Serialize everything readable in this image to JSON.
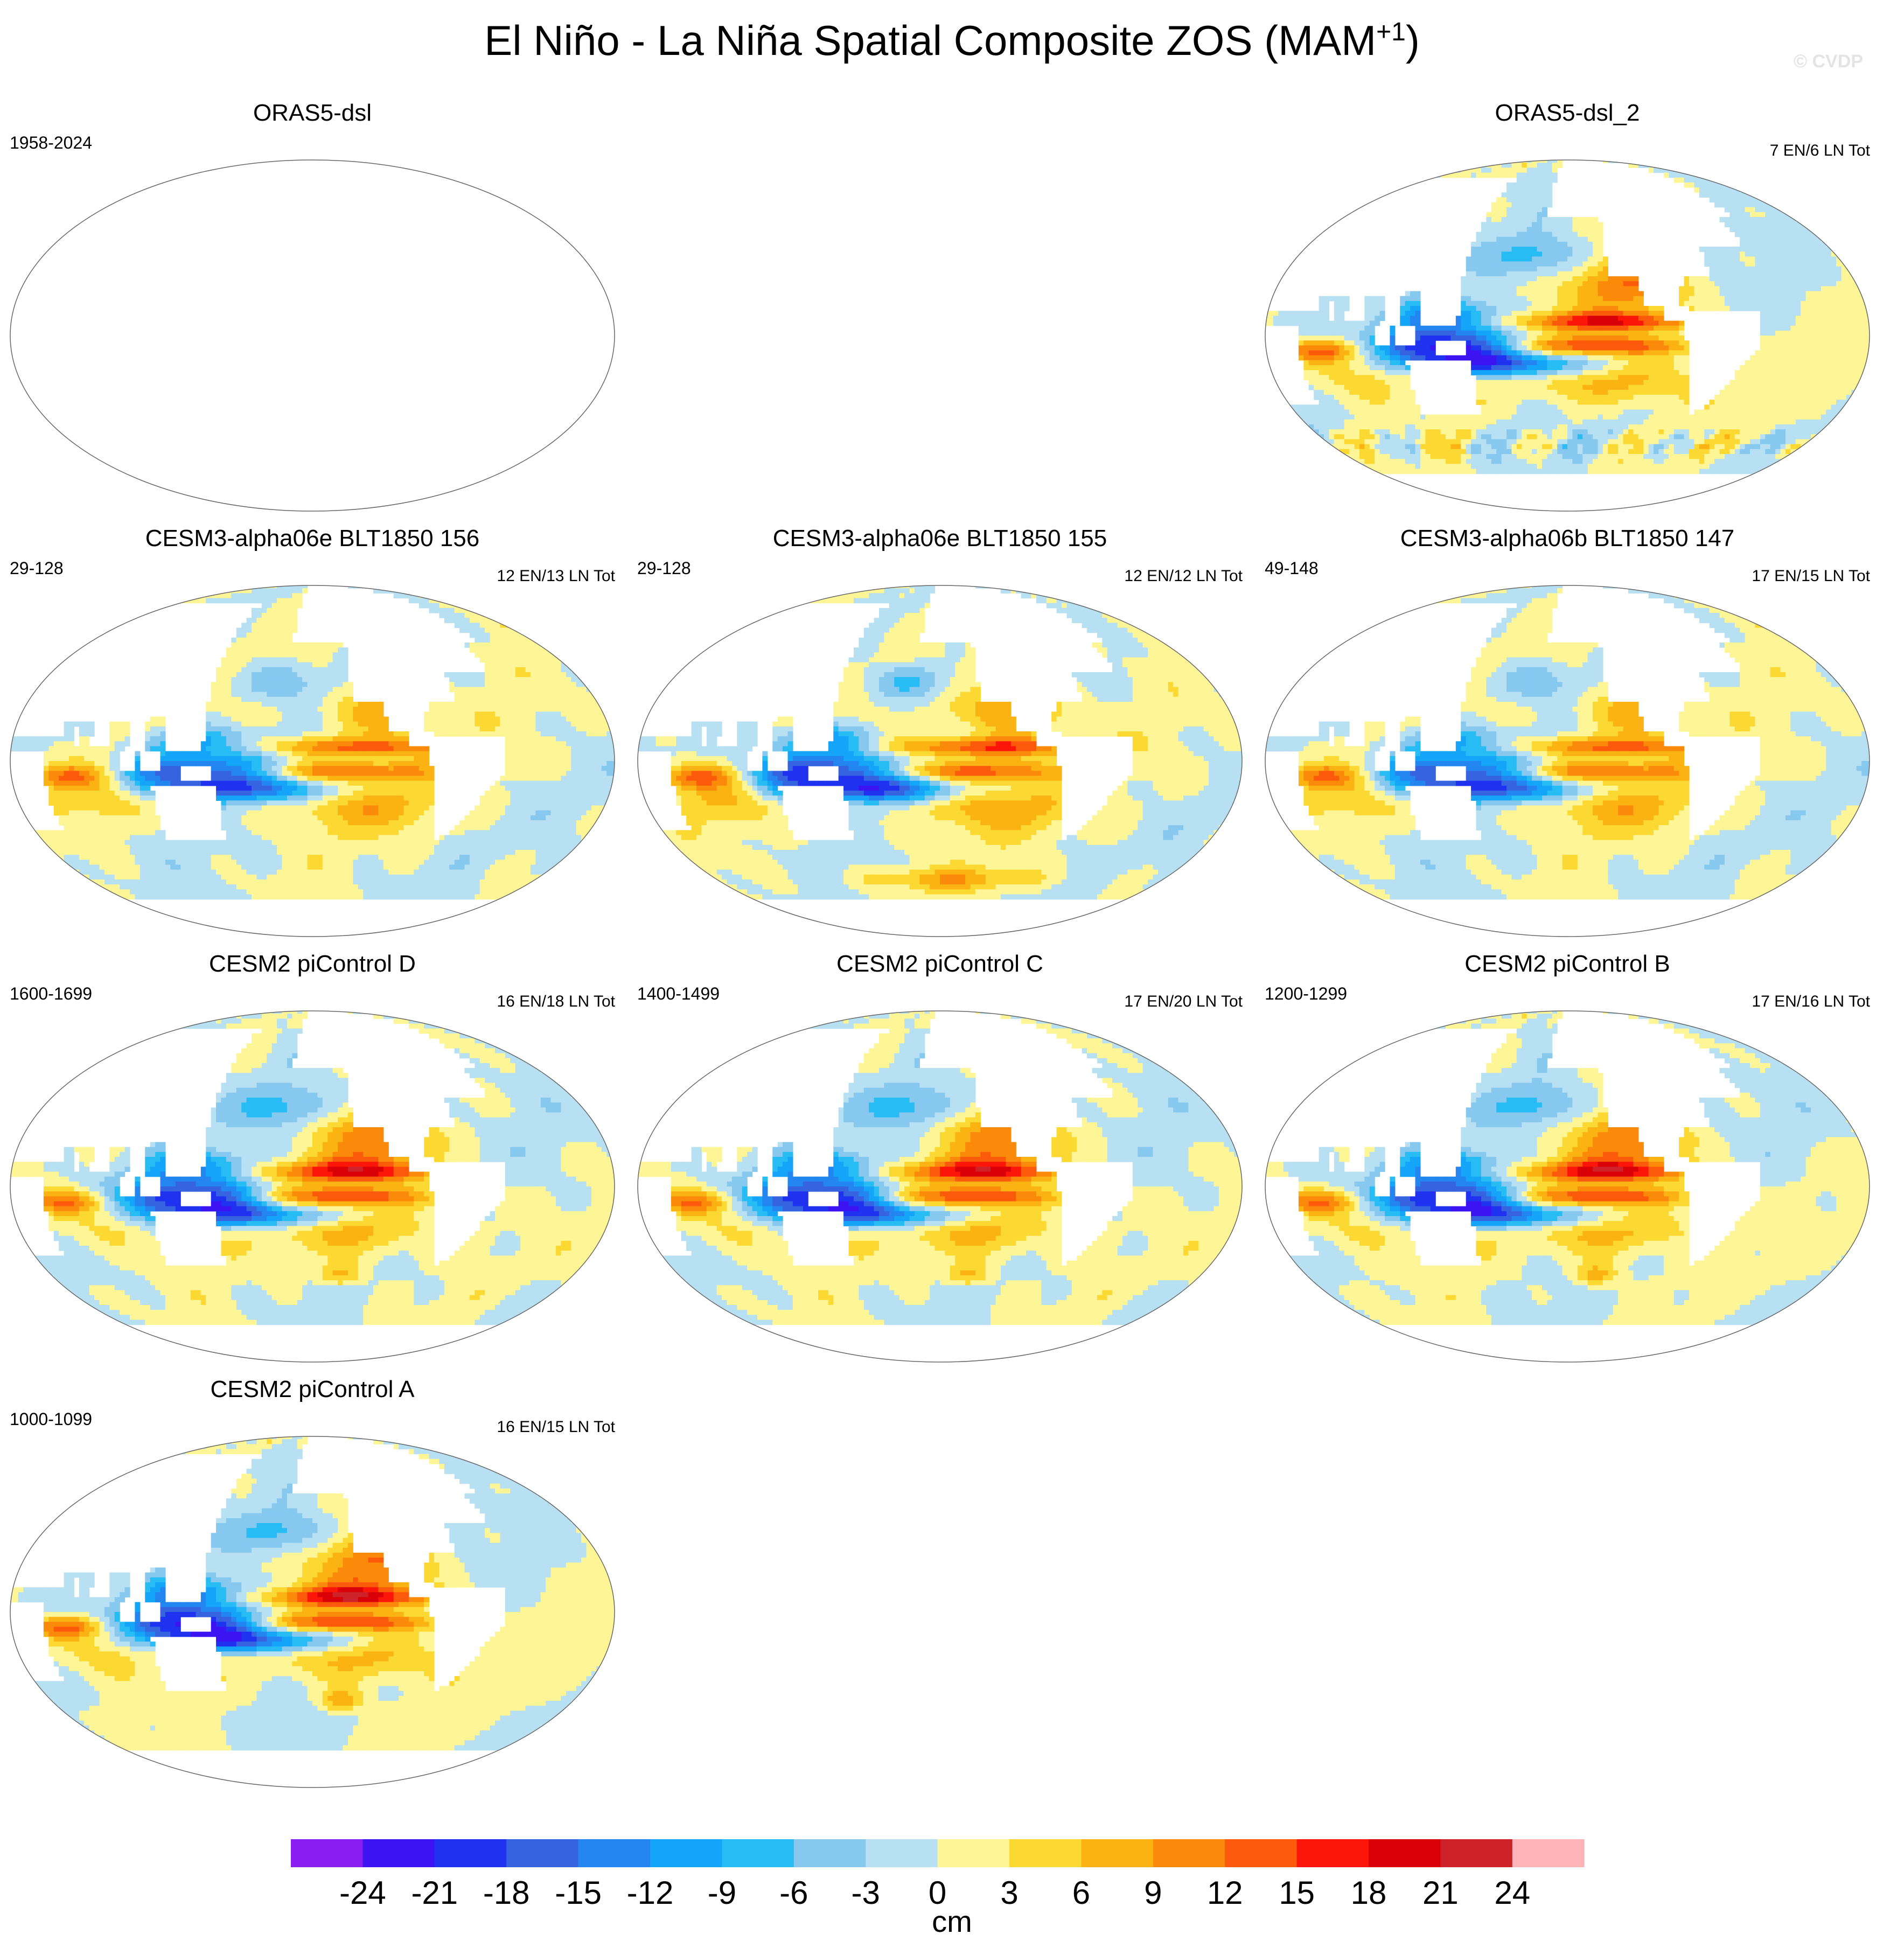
{
  "header": {
    "title": "El Niño - La Niña Spatial Composite ZOS (MAM",
    "title_sup": "+1",
    "title_close": ")",
    "copyright": "© CVDP"
  },
  "chart_data": [
    {
      "type": "heatmap",
      "title": "ORAS5-dsl",
      "period": "1958-2024",
      "counts": "",
      "has_data": false
    },
    {
      "type": "heatmap",
      "title": "ORAS5-dsl_2",
      "period": "",
      "counts": "7 EN/6 LN Tot",
      "has_data": true,
      "pattern": "obs",
      "intensity": 1.1
    },
    {
      "type": "heatmap",
      "title": "CESM3-alpha06e BLT1850 156",
      "period": "29-128",
      "counts": "12 EN/13 LN Tot",
      "has_data": true,
      "pattern": "alpha",
      "intensity": 0.85
    },
    {
      "type": "heatmap",
      "title": "CESM3-alpha06e BLT1850 155",
      "period": "29-128",
      "counts": "12 EN/12 LN Tot",
      "has_data": true,
      "pattern": "alpha_s",
      "intensity": 1.0
    },
    {
      "type": "heatmap",
      "title": "CESM3-alpha06b BLT1850 147",
      "period": "49-148",
      "counts": "17 EN/15 LN Tot",
      "has_data": true,
      "pattern": "alpha",
      "intensity": 0.85
    },
    {
      "type": "heatmap",
      "title": "CESM2 piControl D",
      "period": "1600-1699",
      "counts": "16 EN/18 LN Tot",
      "has_data": true,
      "pattern": "pic",
      "intensity": 1.0
    },
    {
      "type": "heatmap",
      "title": "CESM2 piControl C",
      "period": "1400-1499",
      "counts": "17 EN/20 LN Tot",
      "has_data": true,
      "pattern": "pic",
      "intensity": 1.0
    },
    {
      "type": "heatmap",
      "title": "CESM2 piControl B",
      "period": "1200-1299",
      "counts": "17 EN/16 LN Tot",
      "has_data": true,
      "pattern": "pic",
      "intensity": 1.05
    },
    {
      "type": "heatmap",
      "title": "CESM2 piControl A",
      "period": "1000-1099",
      "counts": "16 EN/15 LN Tot",
      "has_data": true,
      "pattern": "pic",
      "intensity": 1.1
    }
  ],
  "colorbar": {
    "unit": "cm",
    "ticks": [
      "-24",
      "-21",
      "-18",
      "-15",
      "-12",
      "-9",
      "-6",
      "-3",
      "0",
      "3",
      "6",
      "9",
      "12",
      "15",
      "18",
      "21",
      "24"
    ],
    "colors": [
      "#8a1df0",
      "#3c14f2",
      "#1e32f0",
      "#3664e0",
      "#2386f0",
      "#14a4f8",
      "#28bcf5",
      "#87c8ef",
      "#b7e0f2",
      "#fdf596",
      "#fcd832",
      "#fbb213",
      "#fc8a0a",
      "#fb5a0a",
      "#fb1609",
      "#d90008",
      "#cd2228",
      "#fcb4b6"
    ]
  }
}
